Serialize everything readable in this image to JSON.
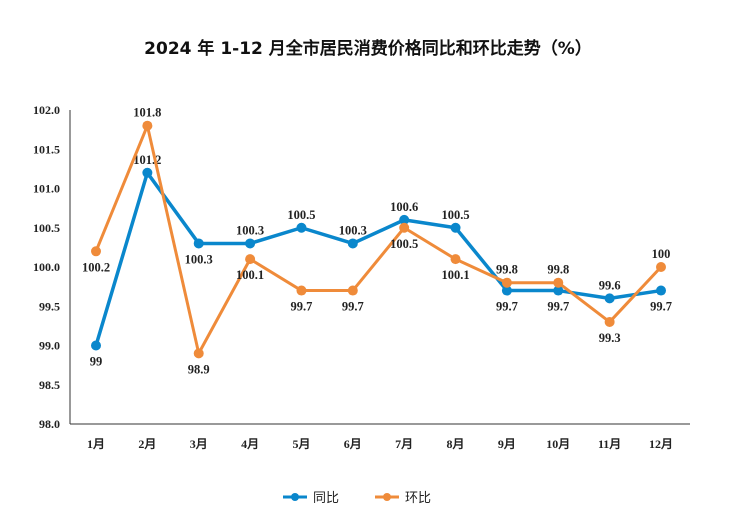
{
  "chart_data": {
    "type": "line",
    "title": "2024 年 1-12 月全市居民消费价格同比和环比走势（%）",
    "categories": [
      "1月",
      "2月",
      "3月",
      "4月",
      "5月",
      "6月",
      "7月",
      "8月",
      "9月",
      "10月",
      "11月",
      "12月"
    ],
    "ylim": [
      98.0,
      102.0
    ],
    "yticks": [
      "98.0",
      "98.5",
      "99.0",
      "99.5",
      "100.0",
      "100.5",
      "101.0",
      "101.5",
      "102.0"
    ],
    "grid": false,
    "legend": "bottom",
    "series": [
      {
        "name": "同比",
        "color": "#0a87cc",
        "values": [
          99,
          101.2,
          100.3,
          100.3,
          100.5,
          100.3,
          100.6,
          100.5,
          99.7,
          99.7,
          99.6,
          99.7
        ]
      },
      {
        "name": "环比",
        "color": "#ef8b3a",
        "values": [
          100.2,
          101.8,
          98.9,
          100.1,
          99.7,
          99.7,
          100.5,
          100.1,
          99.8,
          99.8,
          99.3,
          100
        ]
      }
    ]
  }
}
